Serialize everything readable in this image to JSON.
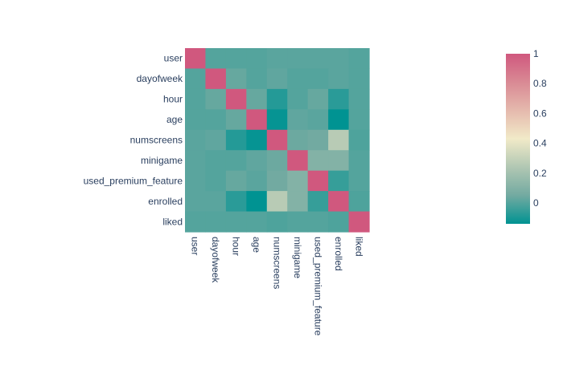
{
  "chart_data": {
    "type": "heatmap",
    "title": "",
    "x_labels": [
      "user",
      "dayofweek",
      "hour",
      "age",
      "numscreens",
      "minigame",
      "used_premium_feature",
      "enrolled",
      "liked"
    ],
    "y_labels": [
      "user",
      "dayofweek",
      "hour",
      "age",
      "numscreens",
      "minigame",
      "used_premium_feature",
      "enrolled",
      "liked"
    ],
    "z": [
      [
        1.0,
        0.0,
        0.0,
        0.0,
        0.01,
        0.01,
        0.01,
        0.01,
        0.0
      ],
      [
        0.0,
        1.0,
        0.03,
        0.0,
        0.02,
        0.0,
        0.0,
        0.01,
        0.0
      ],
      [
        0.0,
        0.03,
        1.0,
        0.03,
        -0.08,
        0.0,
        0.03,
        -0.07,
        0.0
      ],
      [
        0.0,
        0.0,
        0.03,
        1.0,
        -0.13,
        0.02,
        0.01,
        -0.14,
        0.0
      ],
      [
        0.01,
        0.02,
        -0.08,
        -0.13,
        1.0,
        0.04,
        0.05,
        0.26,
        -0.01
      ],
      [
        0.01,
        0.0,
        0.0,
        0.02,
        0.04,
        1.0,
        0.1,
        0.1,
        0.0
      ],
      [
        0.01,
        0.0,
        0.03,
        0.01,
        0.05,
        0.1,
        1.0,
        -0.05,
        0.0
      ],
      [
        0.01,
        0.01,
        -0.07,
        -0.14,
        0.26,
        0.1,
        -0.05,
        1.0,
        -0.01
      ],
      [
        0.0,
        0.0,
        0.0,
        0.0,
        -0.01,
        0.0,
        0.0,
        -0.01,
        1.0
      ]
    ],
    "zmin": -0.14,
    "zmax": 1.0,
    "colorscale": [
      "#009392",
      "#72aaa1",
      "#b1c7b3",
      "#f1eac8",
      "#e5b9ad",
      "#d98994",
      "#d0587e"
    ],
    "colorbar": {
      "ticks": [
        0,
        0.2,
        0.4,
        0.6,
        0.8,
        1
      ],
      "tick_labels": [
        "0",
        "0.2",
        "0.4",
        "0.6",
        "0.8",
        "1"
      ]
    }
  }
}
